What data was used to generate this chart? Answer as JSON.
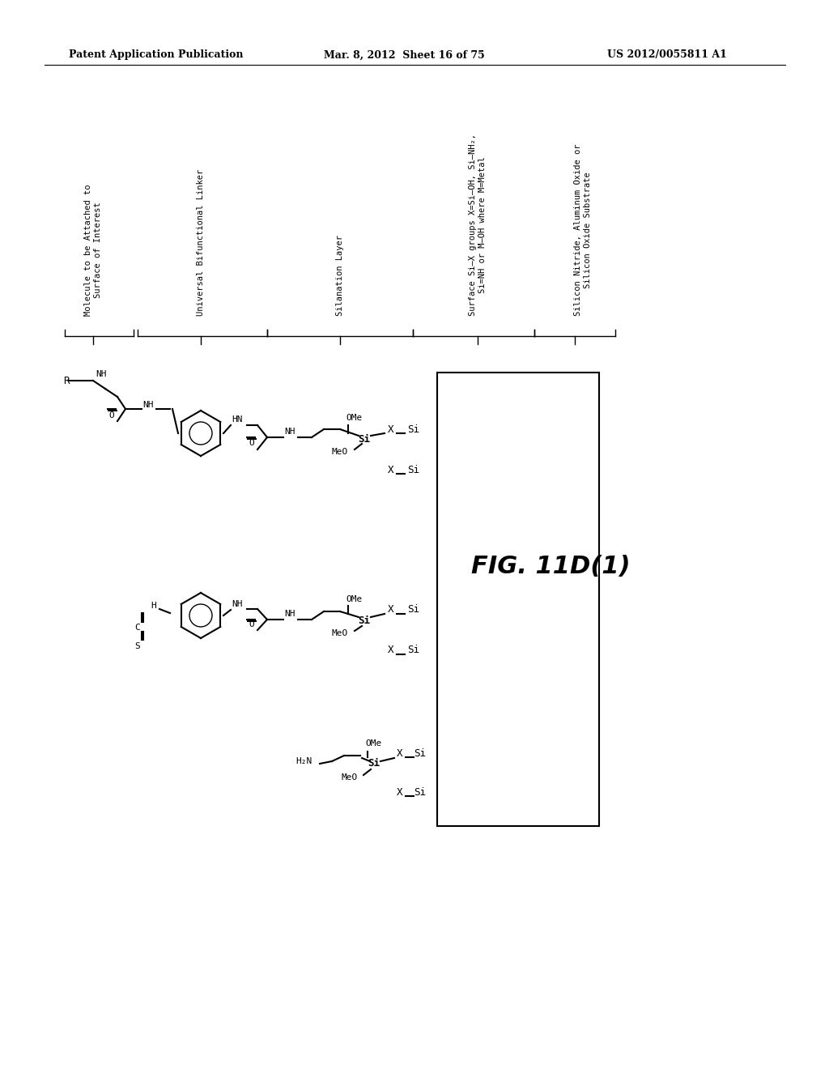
{
  "bg_color": "#ffffff",
  "header_left": "Patent Application Publication",
  "header_mid": "Mar. 8, 2012  Sheet 16 of 75",
  "header_right": "US 2012/0055811 A1",
  "fig_label": "FIG. 11D(1)",
  "label1": "Molecule to be Attached to\nSurface of Interest",
  "label2": "Universal Bifunctional Linker",
  "label3": "Silanation Layer",
  "label4": "Surface Si—X groups X=Si—OH, Si—NH₂,\nSi=NH or M—OH where M=Metal",
  "label5": "Silicon Nitride, Aluminum Oxide or\nSilicon Oxide Substrate"
}
